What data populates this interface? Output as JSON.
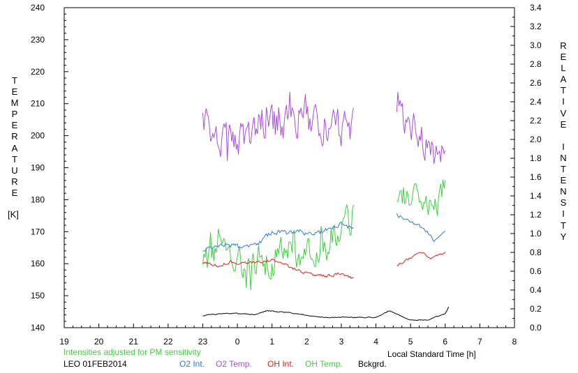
{
  "chart_data": {
    "type": "line",
    "left_axis": {
      "label_letters": [
        "T",
        "E",
        "M",
        "P",
        "E",
        "R",
        "A",
        "T",
        "U",
        "R",
        "E"
      ],
      "unit": "[K]",
      "ylim": [
        140,
        240
      ],
      "ticks": [
        "140",
        "150",
        "160",
        "170",
        "180",
        "190",
        "200",
        "210",
        "220",
        "230",
        "240"
      ]
    },
    "right_axis": {
      "label_letters": [
        "R",
        "E",
        "L",
        "A",
        "T",
        "I",
        "V",
        "E",
        " ",
        "I",
        "N",
        "T",
        "E",
        "N",
        "S",
        "I",
        "T",
        "Y"
      ],
      "ylim": [
        0,
        3.4
      ],
      "ticks": [
        "0.0",
        "0.2",
        "0.4",
        "0.6",
        "0.8",
        "1.0",
        "1.2",
        "1.4",
        "1.6",
        "1.8",
        "2.0",
        "2.2",
        "2.4",
        "2.6",
        "2.8",
        "3.0",
        "3.2",
        "3.4"
      ]
    },
    "x_axis": {
      "label": "Local Standard Time [h]",
      "ticks": [
        "19",
        "20",
        "21",
        "22",
        "23",
        "0",
        "1",
        "2",
        "3",
        "4",
        "5",
        "6",
        "7",
        "8"
      ],
      "xlim": [
        19,
        32
      ]
    },
    "note": "Intensities adjusted for PM sensitivity",
    "station": "LEO 01FEB2014",
    "legend": [
      {
        "name": "O2 Int.",
        "color": "#2a7ad6"
      },
      {
        "name": "O2 Temp.",
        "color": "#a64fd6"
      },
      {
        "name": "OH Int.",
        "color": "#e01f1f"
      },
      {
        "name": "OH Temp.",
        "color": "#3ecf3e"
      },
      {
        "name": "Bckgrd.",
        "color": "#000000"
      }
    ],
    "series": [
      {
        "name": "O2 Temp.",
        "axis": "left",
        "color": "#a64fd6",
        "segments": [
          {
            "t0": 23.0,
            "t1": 27.35,
            "anchors": [
              [
                23.0,
                206
              ],
              [
                23.3,
                203
              ],
              [
                23.6,
                197
              ],
              [
                24.0,
                201
              ],
              [
                24.3,
                199
              ],
              [
                24.6,
                204
              ],
              [
                25.0,
                202
              ],
              [
                25.3,
                203
              ],
              [
                25.6,
                204
              ],
              [
                26.0,
                205
              ],
              [
                26.3,
                204
              ],
              [
                26.6,
                203
              ],
              [
                27.0,
                202
              ],
              [
                27.35,
                204
              ]
            ],
            "noise": 9,
            "spikes": 0.12
          },
          {
            "t0": 28.6,
            "t1": 30.0,
            "anchors": [
              [
                28.6,
                207
              ],
              [
                29.0,
                204
              ],
              [
                29.3,
                200
              ],
              [
                29.6,
                195
              ],
              [
                29.8,
                192
              ],
              [
                30.0,
                197
              ]
            ],
            "noise": 8,
            "spikes": 0.1
          }
        ]
      },
      {
        "name": "OH Temp.",
        "axis": "left",
        "color": "#3ecf3e",
        "segments": [
          {
            "t0": 23.0,
            "t1": 27.35,
            "anchors": [
              [
                23.0,
                160
              ],
              [
                23.4,
                163
              ],
              [
                23.8,
                160
              ],
              [
                24.2,
                159
              ],
              [
                24.6,
                160
              ],
              [
                25.0,
                162
              ],
              [
                25.4,
                164
              ],
              [
                25.8,
                163
              ],
              [
                26.2,
                165
              ],
              [
                26.6,
                166
              ],
              [
                27.0,
                172
              ],
              [
                27.35,
                175
              ]
            ],
            "noise": 8,
            "spikes": 0.1
          },
          {
            "t0": 28.6,
            "t1": 30.0,
            "anchors": [
              [
                28.6,
                183
              ],
              [
                29.0,
                180
              ],
              [
                29.4,
                178
              ],
              [
                29.7,
                176
              ],
              [
                30.0,
                185
              ]
            ],
            "noise": 7,
            "spikes": 0.1
          }
        ]
      },
      {
        "name": "O2 Int.",
        "axis": "right",
        "color": "#2a7ad6",
        "segments": [
          {
            "t0": 23.0,
            "t1": 27.35,
            "anchors": [
              [
                23.0,
                0.82
              ],
              [
                23.4,
                0.85
              ],
              [
                23.8,
                0.88
              ],
              [
                24.2,
                0.84
              ],
              [
                24.6,
                0.9
              ],
              [
                25.0,
                1.02
              ],
              [
                25.4,
                1.0
              ],
              [
                25.8,
                1.02
              ],
              [
                26.2,
                0.98
              ],
              [
                26.6,
                1.05
              ],
              [
                27.0,
                1.1
              ],
              [
                27.35,
                1.05
              ]
            ],
            "noise": 0.04,
            "spikes": 0
          },
          {
            "t0": 28.6,
            "t1": 30.0,
            "anchors": [
              [
                28.6,
                1.2
              ],
              [
                29.0,
                1.12
              ],
              [
                29.4,
                1.05
              ],
              [
                29.7,
                0.92
              ],
              [
                30.0,
                1.04
              ]
            ],
            "noise": 0.03,
            "spikes": 0
          }
        ]
      },
      {
        "name": "OH Int.",
        "axis": "right",
        "color": "#e01f1f",
        "segments": [
          {
            "t0": 23.0,
            "t1": 27.35,
            "anchors": [
              [
                23.0,
                0.7
              ],
              [
                23.4,
                0.66
              ],
              [
                23.8,
                0.7
              ],
              [
                24.2,
                0.68
              ],
              [
                24.6,
                0.7
              ],
              [
                25.0,
                0.72
              ],
              [
                25.4,
                0.66
              ],
              [
                25.8,
                0.6
              ],
              [
                26.2,
                0.56
              ],
              [
                26.6,
                0.55
              ],
              [
                27.0,
                0.58
              ],
              [
                27.35,
                0.52
              ]
            ],
            "noise": 0.025,
            "spikes": 0
          },
          {
            "t0": 28.6,
            "t1": 30.0,
            "anchors": [
              [
                28.6,
                0.66
              ],
              [
                29.0,
                0.74
              ],
              [
                29.3,
                0.8
              ],
              [
                29.6,
                0.74
              ],
              [
                30.0,
                0.8
              ]
            ],
            "noise": 0.02,
            "spikes": 0
          }
        ]
      },
      {
        "name": "Bckgrd.",
        "axis": "right",
        "color": "#000000",
        "segments": [
          {
            "t0": 23.0,
            "t1": 30.1,
            "anchors": [
              [
                23.0,
                0.13
              ],
              [
                23.5,
                0.15
              ],
              [
                24.0,
                0.15
              ],
              [
                24.5,
                0.14
              ],
              [
                24.85,
                0.18
              ],
              [
                25.5,
                0.16
              ],
              [
                26.0,
                0.13
              ],
              [
                26.5,
                0.11
              ],
              [
                27.0,
                0.11
              ],
              [
                27.5,
                0.11
              ],
              [
                28.0,
                0.11
              ],
              [
                28.4,
                0.18
              ],
              [
                29.0,
                0.08
              ],
              [
                29.5,
                0.08
              ],
              [
                30.0,
                0.15
              ],
              [
                30.1,
                0.22
              ]
            ],
            "noise": 0.008,
            "spikes": 0
          }
        ]
      }
    ]
  }
}
